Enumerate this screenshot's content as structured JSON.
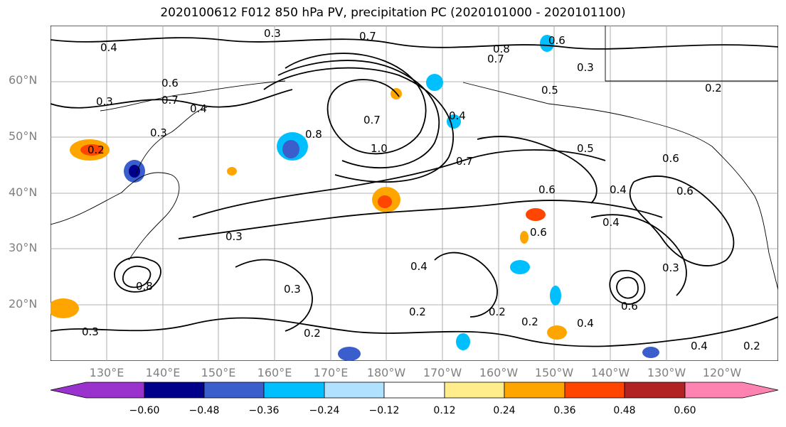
{
  "title": "2020100612 F012 850 hPa PV, precipitation PC (2020101000 - 2020101100)",
  "map": {
    "lat_labels": [
      "60°N",
      "50°N",
      "40°N",
      "30°N",
      "20°N"
    ],
    "lon_labels": [
      "130°E",
      "140°E",
      "150°E",
      "160°E",
      "170°E",
      "180°W",
      "170°W",
      "160°W",
      "150°W",
      "140°W",
      "130°W",
      "120°W"
    ],
    "contour_labels": [
      "0.3",
      "0.7",
      "0.6",
      "0.8",
      "0.7",
      "0.4",
      "0.3",
      "0.6",
      "0.7",
      "0.4",
      "0.5",
      "0.3",
      "0.2",
      "0.7",
      "1.0",
      "0.8",
      "0.4",
      "0.3",
      "0.2",
      "0.7",
      "0.5",
      "0.6",
      "0.4",
      "0.6",
      "0.4",
      "0.6",
      "0.6",
      "0.3",
      "0.4",
      "0.3",
      "0.2",
      "0.2",
      "0.2",
      "0.4",
      "0.3",
      "0.8",
      "0.6",
      "0.3",
      "0.2",
      "0.4",
      "0.2"
    ]
  },
  "colorbar": {
    "colors": [
      "#9a32cd",
      "#00008b",
      "#3a5fcd",
      "#00bfff",
      "#b0e2ff",
      "#ffffff",
      "#ffec8b",
      "#ffa500",
      "#ff4500",
      "#b22222",
      "#ff83b0"
    ],
    "tick_labels": [
      "−0.60",
      "−0.48",
      "−0.36",
      "−0.24",
      "−0.12",
      "0.12",
      "0.24",
      "0.36",
      "0.48",
      "0.60"
    ]
  }
}
